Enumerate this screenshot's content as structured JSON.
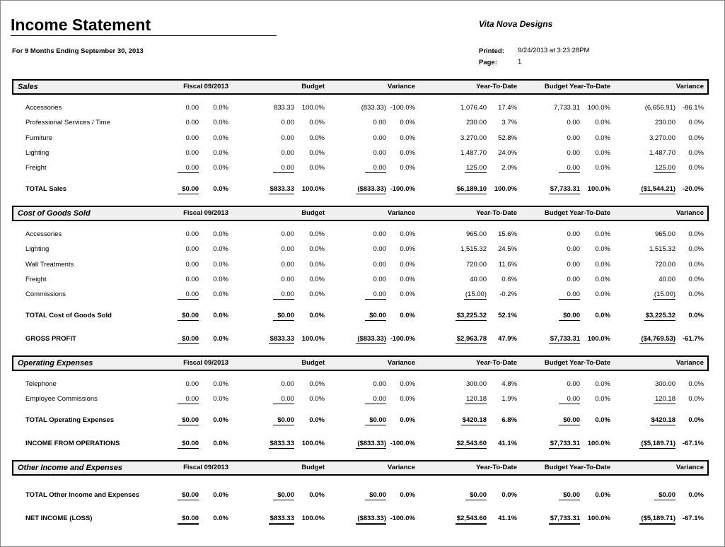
{
  "header": {
    "title": "Income Statement",
    "company": "Vita Nova Designs",
    "period": "For 9 Months Ending September 30, 2013",
    "printed_label": "Printed:",
    "printed": "9/24/2013 at 3:23:28PM",
    "page_label": "Page:",
    "page": "1"
  },
  "columns": [
    "Fiscal 09/2013",
    "Budget",
    "Variance",
    "Year-To-Date",
    "Budget Year-To-Date",
    "Variance"
  ],
  "sections": [
    {
      "title": "Sales",
      "rows": [
        {
          "label": "Accessories",
          "cells": [
            "0.00",
            "0.0%",
            "833.33",
            "100.0%",
            "(833.33)",
            "-100.0%",
            "1,076.40",
            "17.4%",
            "7,733.31",
            "100.0%",
            "(6,656.91)",
            "-86.1%"
          ]
        },
        {
          "label": "Professional Services / Time",
          "cells": [
            "0.00",
            "0.0%",
            "0.00",
            "0.0%",
            "0.00",
            "0.0%",
            "230.00",
            "3.7%",
            "0.00",
            "0.0%",
            "230.00",
            "0.0%"
          ]
        },
        {
          "label": "Furniture",
          "cells": [
            "0.00",
            "0.0%",
            "0.00",
            "0.0%",
            "0.00",
            "0.0%",
            "3,270.00",
            "52.8%",
            "0.00",
            "0.0%",
            "3,270.00",
            "0.0%"
          ]
        },
        {
          "label": "Lighting",
          "cells": [
            "0.00",
            "0.0%",
            "0.00",
            "0.0%",
            "0.00",
            "0.0%",
            "1,487.70",
            "24.0%",
            "0.00",
            "0.0%",
            "1,487.70",
            "0.0%"
          ]
        },
        {
          "label": "Freight",
          "cells": [
            "0.00",
            "0.0%",
            "0.00",
            "0.0%",
            "0.00",
            "0.0%",
            "125.00",
            "2.0%",
            "0.00",
            "0.0%",
            "125.00",
            "0.0%"
          ]
        }
      ],
      "totals": [
        {
          "label": "TOTAL Sales",
          "cells": [
            "$0.00",
            "0.0%",
            "$833.33",
            "100.0%",
            "($833.33)",
            "-100.0%",
            "$6,189.10",
            "100.0%",
            "$7,733.31",
            "100.0%",
            "($1,544.21)",
            "-20.0%"
          ]
        }
      ]
    },
    {
      "title": "Cost of Goods Sold",
      "rows": [
        {
          "label": "Accessories",
          "cells": [
            "0.00",
            "0.0%",
            "0.00",
            "0.0%",
            "0.00",
            "0.0%",
            "965.00",
            "15.6%",
            "0.00",
            "0.0%",
            "965.00",
            "0.0%"
          ]
        },
        {
          "label": "Lighting",
          "cells": [
            "0.00",
            "0.0%",
            "0.00",
            "0.0%",
            "0.00",
            "0.0%",
            "1,515.32",
            "24.5%",
            "0.00",
            "0.0%",
            "1,515.32",
            "0.0%"
          ]
        },
        {
          "label": "Wall Treatments",
          "cells": [
            "0.00",
            "0.0%",
            "0.00",
            "0.0%",
            "0.00",
            "0.0%",
            "720.00",
            "11.6%",
            "0.00",
            "0.0%",
            "720.00",
            "0.0%"
          ]
        },
        {
          "label": "Freight",
          "cells": [
            "0.00",
            "0.0%",
            "0.00",
            "0.0%",
            "0.00",
            "0.0%",
            "40.00",
            "0.6%",
            "0.00",
            "0.0%",
            "40.00",
            "0.0%"
          ]
        },
        {
          "label": "Commissions",
          "cells": [
            "0.00",
            "0.0%",
            "0.00",
            "0.0%",
            "0.00",
            "0.0%",
            "(15.00)",
            "-0.2%",
            "0.00",
            "0.0%",
            "(15.00)",
            "0.0%"
          ]
        }
      ],
      "totals": [
        {
          "label": "TOTAL Cost of Goods Sold",
          "cells": [
            "$0.00",
            "0.0%",
            "$0.00",
            "0.0%",
            "$0.00",
            "0.0%",
            "$3,225.32",
            "52.1%",
            "$0.00",
            "0.0%",
            "$3,225.32",
            "0.0%"
          ]
        },
        {
          "label": "GROSS PROFIT",
          "cells": [
            "$0.00",
            "0.0%",
            "$833.33",
            "100.0%",
            "($833.33)",
            "-100.0%",
            "$2,963.78",
            "47.9%",
            "$7,733.31",
            "100.0%",
            "($4,769.53)",
            "-61.7%"
          ]
        }
      ]
    },
    {
      "title": "Operating Expenses",
      "rows": [
        {
          "label": "Telephone",
          "cells": [
            "0.00",
            "0.0%",
            "0.00",
            "0.0%",
            "0.00",
            "0.0%",
            "300.00",
            "4.8%",
            "0.00",
            "0.0%",
            "300.00",
            "0.0%"
          ]
        },
        {
          "label": "Employee Commissions",
          "cells": [
            "0.00",
            "0.0%",
            "0.00",
            "0.0%",
            "0.00",
            "0.0%",
            "120.18",
            "1.9%",
            "0.00",
            "0.0%",
            "120.18",
            "0.0%"
          ]
        }
      ],
      "totals": [
        {
          "label": "TOTAL Operating Expenses",
          "cells": [
            "$0.00",
            "0.0%",
            "$0.00",
            "0.0%",
            "$0.00",
            "0.0%",
            "$420.18",
            "6.8%",
            "$0.00",
            "0.0%",
            "$420.18",
            "0.0%"
          ]
        },
        {
          "label": "INCOME FROM OPERATIONS",
          "cells": [
            "$0.00",
            "0.0%",
            "$833.33",
            "100.0%",
            "($833.33)",
            "-100.0%",
            "$2,543.60",
            "41.1%",
            "$7,733.31",
            "100.0%",
            "($5,189.71)",
            "-67.1%"
          ]
        }
      ]
    },
    {
      "title": "Other Income and Expenses",
      "rows": [],
      "totals": [
        {
          "label": "TOTAL Other Income and Expenses",
          "cells": [
            "$0.00",
            "0.0%",
            "$0.00",
            "0.0%",
            "$0.00",
            "0.0%",
            "$0.00",
            "0.0%",
            "$0.00",
            "0.0%",
            "$0.00",
            "0.0%"
          ]
        },
        {
          "label": "NET INCOME (LOSS)",
          "cells": [
            "$0.00",
            "0.0%",
            "$833.33",
            "100.0%",
            "($833.33)",
            "-100.0%",
            "$2,543.60",
            "41.1%",
            "$7,733.31",
            "100.0%",
            "($5,189.71)",
            "-67.1%"
          ]
        }
      ]
    }
  ]
}
